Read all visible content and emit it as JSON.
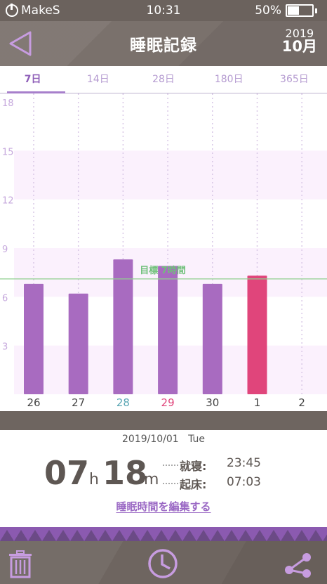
{
  "status": {
    "carrier": "MakeS",
    "time": "10:31",
    "battery": "50%",
    "battery_level": 0.5
  },
  "header": {
    "title": "睡眠記録",
    "year": "2019",
    "month": "10月"
  },
  "tabs": [
    {
      "label": "7日",
      "active": true
    },
    {
      "label": "14日",
      "active": false
    },
    {
      "label": "28日",
      "active": false
    },
    {
      "label": "180日",
      "active": false
    },
    {
      "label": "365日",
      "active": false
    }
  ],
  "chart_data": {
    "type": "bar",
    "categories": [
      "26",
      "27",
      "28",
      "29",
      "30",
      "1",
      "2"
    ],
    "category_colors": [
      "#444444",
      "#444444",
      "#5aa6b4",
      "#e0457b",
      "#444444",
      "#444444",
      "#444444"
    ],
    "values": [
      6.8,
      6.2,
      8.3,
      7.9,
      6.8,
      7.3,
      null
    ],
    "bar_colors": [
      "#a86bc0",
      "#a86bc0",
      "#a86bc0",
      "#a86bc0",
      "#a86bc0",
      "#e0457b",
      "#a86bc0"
    ],
    "yticks": [
      "18",
      "15",
      "12",
      "9",
      "6",
      "3"
    ],
    "ylim": [
      0,
      18
    ],
    "goal": {
      "label": "目標 7時間",
      "value": 7.1
    }
  },
  "summary": {
    "date": "2019/10/01",
    "weekday": "Tue",
    "hours": "07",
    "hours_unit": "h",
    "minutes": "18",
    "minutes_unit": "m",
    "bedtime_label": "就寝:",
    "bedtime": "23:45",
    "wake_label": "起床:",
    "wake": "07:03",
    "edit_label": "睡眠時間を編集する"
  },
  "footer": {
    "icons": [
      "trash-icon",
      "clock-icon",
      "share-icon"
    ]
  },
  "colors": {
    "accent": "#a86bc0",
    "highlight": "#e0457b",
    "band": "#fbf1fd",
    "goal_line": "#8fcf8f"
  }
}
